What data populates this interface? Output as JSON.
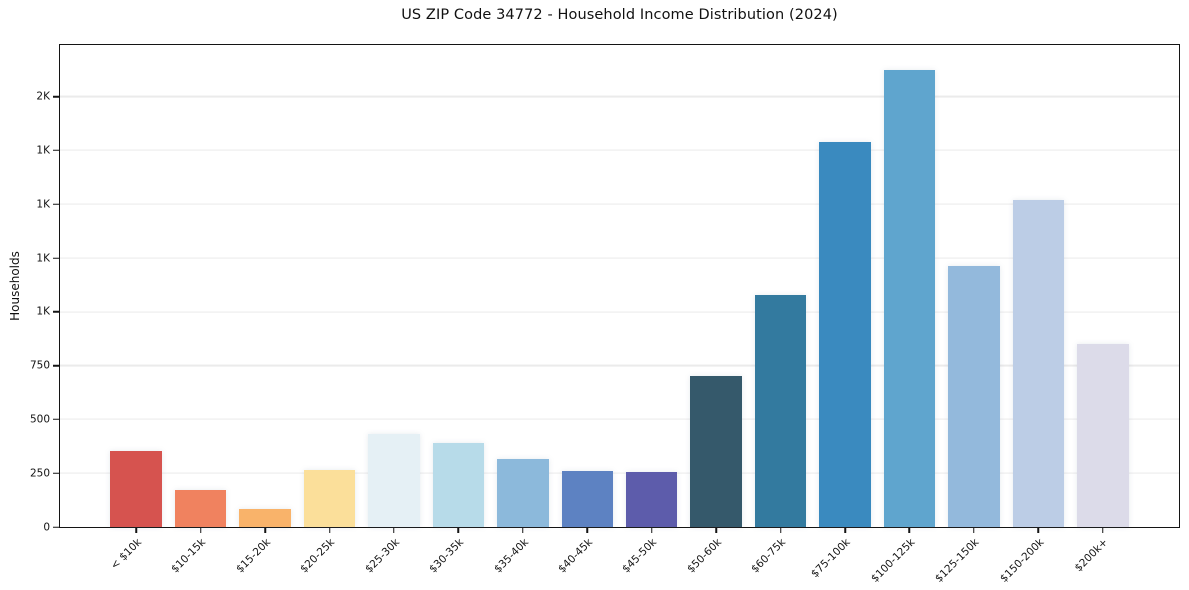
{
  "title": "US ZIP Code 34772 - Household Income Distribution (2024)",
  "chart_data": {
    "type": "bar",
    "title": "US ZIP Code 34772 - Household Income Distribution (2024)",
    "xlabel": "",
    "ylabel": "Households",
    "categories": [
      "< $10k",
      "$10-15k",
      "$15-20k",
      "$20-25k",
      "$25-30k",
      "$30-35k",
      "$35-40k",
      "$40-45k",
      "$45-50k",
      "$50-60k",
      "$60-75k",
      "$75-100k",
      "$100-125k",
      "$125-150k",
      "$150-200k",
      "$200k+"
    ],
    "values": [
      355,
      172,
      82,
      265,
      432,
      390,
      316,
      262,
      256,
      700,
      1080,
      1790,
      2125,
      1215,
      1520,
      852
    ],
    "bar_colors": [
      "#d6534f",
      "#f0825f",
      "#f9b36a",
      "#fbdf9a",
      "#e5f0f5",
      "#b7dbe9",
      "#8cb9db",
      "#5d82c2",
      "#5d5cab",
      "#35596b",
      "#337a9f",
      "#3a8abf",
      "#5fa5ce",
      "#93b9dc",
      "#bccde6",
      "#dcdbe9"
    ],
    "ylim": [
      0,
      2240
    ],
    "yticks": [
      {
        "value": 0,
        "label": "0"
      },
      {
        "value": 250,
        "label": "250"
      },
      {
        "value": 500,
        "label": "500"
      },
      {
        "value": 750,
        "label": "750"
      },
      {
        "value": 1000,
        "label": "1K"
      },
      {
        "value": 1250,
        "label": "1K"
      },
      {
        "value": 1500,
        "label": "1K"
      },
      {
        "value": 1750,
        "label": "1K"
      },
      {
        "value": 2000,
        "label": "2K"
      }
    ],
    "grid": "horizontal",
    "legend": "none",
    "frame": "full-box",
    "colors": {
      "background": "#ffffff",
      "gridline": "#ebebeb",
      "spine": "#141414",
      "text": "#141414"
    }
  }
}
